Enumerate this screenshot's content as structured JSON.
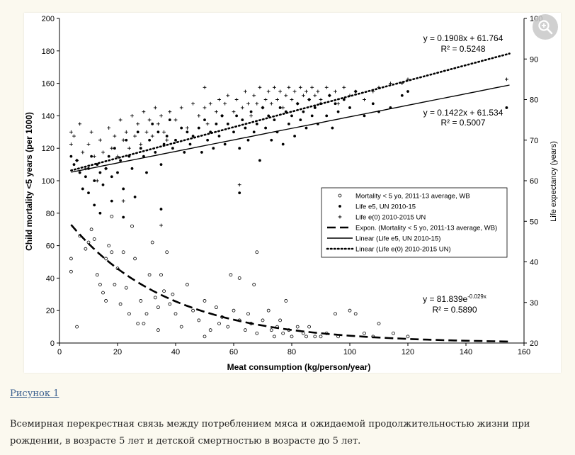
{
  "figure": {
    "caption_link": "Рисунок 1",
    "caption_text": "Всемирная перекрестная связь между потреблением мяса и ожидаемой продолжительностью жизни при рождении, в возрасте 5 лет и детской смертностью в возрасте до 5 лет.",
    "zoom_icon": "zoom-in-icon"
  },
  "chart_data": {
    "type": "scatter",
    "title": "",
    "xlabel": "Meat consumption (kg/person/year)",
    "ylabel": "Child mortality <5 years (per 1000)",
    "y2label": "Life expectancy (years)",
    "xlim": [
      0,
      160
    ],
    "ylim": [
      0,
      200
    ],
    "y2lim": [
      20,
      100
    ],
    "x_ticks": [
      0,
      20,
      40,
      60,
      80,
      100,
      120,
      140,
      160
    ],
    "y_ticks": [
      0,
      20,
      40,
      60,
      80,
      100,
      120,
      140,
      160,
      180,
      200
    ],
    "y2_ticks": [
      20,
      30,
      40,
      50,
      60,
      70,
      80,
      90,
      100
    ],
    "grid": false,
    "legend_position": "right-middle",
    "series": [
      {
        "name": "Mortality < 5 yo, 2011-13 average, WB",
        "marker": "open-circle",
        "axis": "left",
        "points": [
          [
            4,
            52
          ],
          [
            4,
            44
          ],
          [
            6,
            10
          ],
          [
            7,
            66
          ],
          [
            9,
            58
          ],
          [
            10,
            62
          ],
          [
            11,
            70
          ],
          [
            12,
            64
          ],
          [
            13,
            42
          ],
          [
            14,
            36
          ],
          [
            15,
            31
          ],
          [
            16,
            26
          ],
          [
            16,
            52
          ],
          [
            17,
            60
          ],
          [
            18,
            56
          ],
          [
            18,
            78
          ],
          [
            19,
            36
          ],
          [
            20,
            46
          ],
          [
            21,
            24
          ],
          [
            22,
            56
          ],
          [
            23,
            34
          ],
          [
            24,
            18
          ],
          [
            25,
            72
          ],
          [
            26,
            52
          ],
          [
            27,
            12
          ],
          [
            28,
            26
          ],
          [
            29,
            12
          ],
          [
            30,
            18
          ],
          [
            31,
            42
          ],
          [
            32,
            62
          ],
          [
            33,
            28
          ],
          [
            34,
            22
          ],
          [
            34,
            8
          ],
          [
            35,
            42
          ],
          [
            36,
            32
          ],
          [
            37,
            56
          ],
          [
            38,
            24
          ],
          [
            39,
            30
          ],
          [
            40,
            18
          ],
          [
            42,
            10
          ],
          [
            44,
            36
          ],
          [
            46,
            20
          ],
          [
            48,
            14
          ],
          [
            50,
            26
          ],
          [
            50,
            4
          ],
          [
            52,
            8
          ],
          [
            54,
            22
          ],
          [
            55,
            12
          ],
          [
            56,
            16
          ],
          [
            58,
            10
          ],
          [
            59,
            42
          ],
          [
            60,
            20
          ],
          [
            62,
            40
          ],
          [
            62,
            14
          ],
          [
            64,
            8
          ],
          [
            65,
            18
          ],
          [
            66,
            12
          ],
          [
            67,
            36
          ],
          [
            68,
            56
          ],
          [
            68,
            6
          ],
          [
            70,
            14
          ],
          [
            72,
            20
          ],
          [
            73,
            8
          ],
          [
            74,
            4
          ],
          [
            75,
            10
          ],
          [
            76,
            14
          ],
          [
            77,
            6
          ],
          [
            78,
            26
          ],
          [
            79,
            8
          ],
          [
            80,
            4
          ],
          [
            82,
            10
          ],
          [
            84,
            6
          ],
          [
            85,
            4
          ],
          [
            86,
            10
          ],
          [
            88,
            4
          ],
          [
            90,
            4
          ],
          [
            92,
            6
          ],
          [
            95,
            18
          ],
          [
            96,
            4
          ],
          [
            100,
            20
          ],
          [
            102,
            18
          ],
          [
            105,
            6
          ],
          [
            108,
            4
          ],
          [
            110,
            12
          ],
          [
            115,
            6
          ],
          [
            120,
            4
          ]
        ]
      },
      {
        "name": "Life e5, UN 2010-15",
        "marker": "dot",
        "axis": "right",
        "points": [
          [
            4,
            66
          ],
          [
            5,
            64
          ],
          [
            6,
            65
          ],
          [
            7,
            62
          ],
          [
            8,
            58
          ],
          [
            9,
            61
          ],
          [
            10,
            63
          ],
          [
            10,
            57
          ],
          [
            11,
            66
          ],
          [
            12,
            60
          ],
          [
            12,
            54
          ],
          [
            13,
            64
          ],
          [
            14,
            62
          ],
          [
            14,
            52
          ],
          [
            15,
            59
          ],
          [
            16,
            63
          ],
          [
            17,
            66
          ],
          [
            18,
            61
          ],
          [
            18,
            55
          ],
          [
            19,
            68
          ],
          [
            20,
            62
          ],
          [
            21,
            65
          ],
          [
            22,
            58
          ],
          [
            22,
            51
          ],
          [
            23,
            70
          ],
          [
            24,
            66
          ],
          [
            25,
            63
          ],
          [
            26,
            56
          ],
          [
            27,
            72
          ],
          [
            28,
            68
          ],
          [
            29,
            66
          ],
          [
            30,
            62
          ],
          [
            31,
            70
          ],
          [
            32,
            74
          ],
          [
            33,
            67
          ],
          [
            34,
            72
          ],
          [
            35,
            64
          ],
          [
            35,
            53
          ],
          [
            36,
            69
          ],
          [
            37,
            71
          ],
          [
            38,
            75
          ],
          [
            39,
            68
          ],
          [
            40,
            70
          ],
          [
            42,
            73
          ],
          [
            43,
            67
          ],
          [
            44,
            72
          ],
          [
            45,
            69
          ],
          [
            46,
            71
          ],
          [
            48,
            73
          ],
          [
            49,
            67
          ],
          [
            50,
            75
          ],
          [
            51,
            70
          ],
          [
            52,
            72
          ],
          [
            53,
            68
          ],
          [
            54,
            74
          ],
          [
            55,
            71
          ],
          [
            56,
            76
          ],
          [
            57,
            69
          ],
          [
            58,
            74
          ],
          [
            60,
            72
          ],
          [
            61,
            76
          ],
          [
            62,
            57
          ],
          [
            62,
            68
          ],
          [
            63,
            75
          ],
          [
            64,
            73
          ],
          [
            65,
            70
          ],
          [
            66,
            77
          ],
          [
            67,
            72
          ],
          [
            68,
            74
          ],
          [
            69,
            65
          ],
          [
            70,
            78
          ],
          [
            71,
            73
          ],
          [
            72,
            76
          ],
          [
            73,
            70
          ],
          [
            74,
            75
          ],
          [
            75,
            72
          ],
          [
            76,
            78
          ],
          [
            77,
            69
          ],
          [
            78,
            77
          ],
          [
            79,
            74
          ],
          [
            80,
            76
          ],
          [
            81,
            71
          ],
          [
            82,
            79
          ],
          [
            83,
            75
          ],
          [
            84,
            77
          ],
          [
            85,
            73
          ],
          [
            86,
            80
          ],
          [
            87,
            76
          ],
          [
            88,
            78
          ],
          [
            89,
            74
          ],
          [
            90,
            79
          ],
          [
            92,
            76
          ],
          [
            93,
            81
          ],
          [
            94,
            73
          ],
          [
            95,
            79
          ],
          [
            96,
            77
          ],
          [
            98,
            80
          ],
          [
            100,
            78
          ],
          [
            102,
            82
          ],
          [
            105,
            76
          ],
          [
            108,
            79
          ],
          [
            110,
            77
          ],
          [
            114,
            78
          ],
          [
            118,
            81
          ],
          [
            120,
            82
          ],
          [
            154,
            78
          ]
        ]
      },
      {
        "name": "Life e(0) 2010-2015 UN",
        "marker": "plus",
        "axis": "right",
        "points": [
          [
            4,
            69
          ],
          [
            4,
            72
          ],
          [
            5,
            71
          ],
          [
            6,
            65
          ],
          [
            7,
            74
          ],
          [
            8,
            67
          ],
          [
            9,
            63
          ],
          [
            10,
            69
          ],
          [
            11,
            72
          ],
          [
            12,
            66
          ],
          [
            13,
            60
          ],
          [
            14,
            70
          ],
          [
            15,
            67
          ],
          [
            16,
            63
          ],
          [
            17,
            73
          ],
          [
            18,
            68
          ],
          [
            19,
            71
          ],
          [
            20,
            66
          ],
          [
            21,
            75
          ],
          [
            22,
            70
          ],
          [
            22,
            55
          ],
          [
            23,
            72
          ],
          [
            24,
            68
          ],
          [
            25,
            76
          ],
          [
            26,
            71
          ],
          [
            27,
            74
          ],
          [
            28,
            69
          ],
          [
            29,
            77
          ],
          [
            30,
            72
          ],
          [
            31,
            75
          ],
          [
            32,
            71
          ],
          [
            33,
            78
          ],
          [
            34,
            74
          ],
          [
            35,
            76
          ],
          [
            35,
            49
          ],
          [
            36,
            72
          ],
          [
            37,
            70
          ],
          [
            38,
            77
          ],
          [
            40,
            75
          ],
          [
            42,
            78
          ],
          [
            44,
            73
          ],
          [
            46,
            79
          ],
          [
            48,
            76
          ],
          [
            50,
            78
          ],
          [
            50,
            83
          ],
          [
            51,
            74
          ],
          [
            52,
            79
          ],
          [
            54,
            77
          ],
          [
            55,
            80
          ],
          [
            56,
            76
          ],
          [
            57,
            79
          ],
          [
            58,
            81
          ],
          [
            60,
            77
          ],
          [
            61,
            80
          ],
          [
            62,
            59
          ],
          [
            63,
            78
          ],
          [
            64,
            82
          ],
          [
            65,
            79
          ],
          [
            66,
            76
          ],
          [
            67,
            81
          ],
          [
            68,
            79
          ],
          [
            69,
            83
          ],
          [
            70,
            78
          ],
          [
            71,
            80
          ],
          [
            72,
            82
          ],
          [
            73,
            79
          ],
          [
            74,
            83
          ],
          [
            75,
            80
          ],
          [
            76,
            82
          ],
          [
            77,
            78
          ],
          [
            78,
            81
          ],
          [
            79,
            83
          ],
          [
            80,
            80
          ],
          [
            81,
            82
          ],
          [
            82,
            79
          ],
          [
            83,
            83
          ],
          [
            84,
            81
          ],
          [
            85,
            82
          ],
          [
            86,
            80
          ],
          [
            87,
            83
          ],
          [
            88,
            81
          ],
          [
            89,
            82
          ],
          [
            90,
            80
          ],
          [
            92,
            83
          ],
          [
            93,
            81
          ],
          [
            95,
            82
          ],
          [
            96,
            79
          ],
          [
            98,
            83
          ],
          [
            100,
            81
          ],
          [
            102,
            82
          ],
          [
            105,
            80
          ],
          [
            108,
            82
          ],
          [
            110,
            83
          ],
          [
            114,
            84
          ],
          [
            118,
            84
          ],
          [
            120,
            85
          ],
          [
            154,
            85
          ]
        ]
      }
    ],
    "trendlines": [
      {
        "name": "Expon. (Mortality < 5 yo, 2011-13 average, WB)",
        "type": "exponential",
        "axis": "left",
        "a": 81.839,
        "b": -0.029,
        "x_range": [
          4,
          155
        ],
        "style": "dashed",
        "equation": "y = 81.839e",
        "exponent": "-0.029x",
        "r2": "R² = 0.5890"
      },
      {
        "name": "Linear (Life e5, UN 2010-15)",
        "type": "linear",
        "axis": "right",
        "slope": 0.1422,
        "intercept": 61.534,
        "x_range": [
          4,
          155
        ],
        "style": "solid",
        "equation": "y = 0.1422x + 61.534",
        "r2": "R² = 0.5007"
      },
      {
        "name": "Linear (Life e(0) 2010-2015 UN)",
        "type": "linear",
        "axis": "right",
        "slope": 0.1908,
        "intercept": 61.764,
        "x_range": [
          4,
          155
        ],
        "style": "dotted",
        "equation": "y = 0.1908x + 61.764",
        "r2": "R² = 0.5248"
      }
    ]
  }
}
